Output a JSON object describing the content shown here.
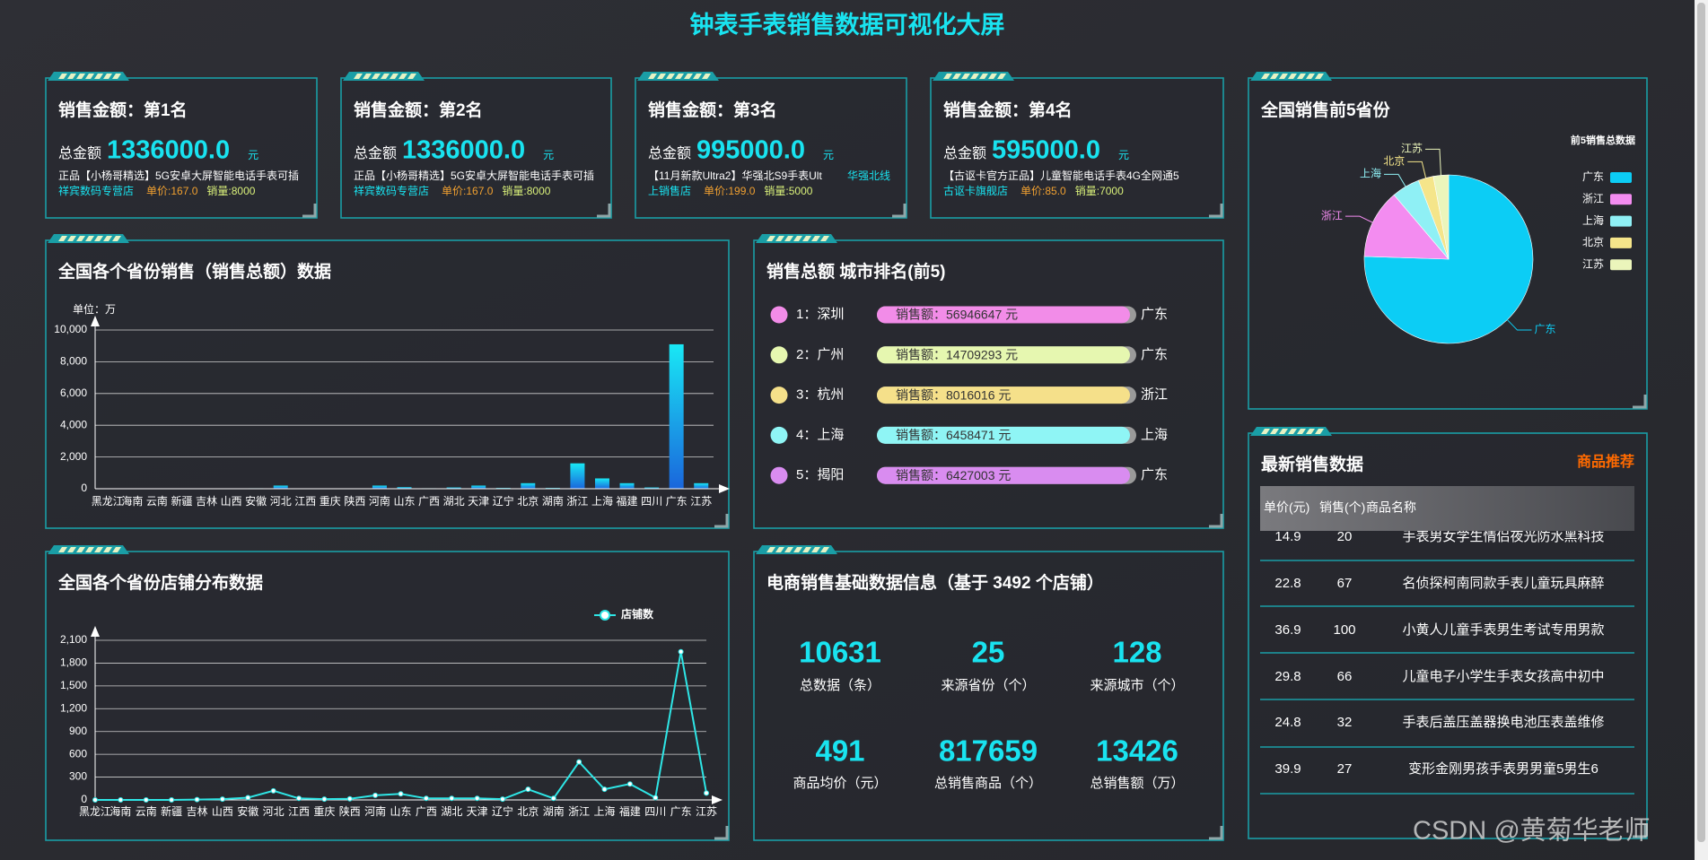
{
  "title": "钟表手表销售数据可视化大屏",
  "cards": [
    {
      "heading": "销售金额：第1名",
      "total_label": "总金额",
      "amount": "1336000.0",
      "unit": "元",
      "product": "正品【小杨哥精选】5G安卓大屏智能电话手表可插",
      "shop": "祥宾数码专营店",
      "price": "单价:167.0",
      "sales": "销量:8000"
    },
    {
      "heading": "销售金额：第2名",
      "total_label": "总金额",
      "amount": "1336000.0",
      "unit": "元",
      "product": "正品【小杨哥精选】5G安卓大屏智能电话手表可插",
      "shop": "祥宾数码专营店",
      "price": "单价:167.0",
      "sales": "销量:8000"
    },
    {
      "heading": "销售金额：第3名",
      "total_label": "总金额",
      "amount": "995000.0",
      "unit": "元",
      "product": "【11月新款Ultra2】华强北S9手表Ult",
      "tag": "华强北线",
      "shop": "上销售店",
      "price": "单价:199.0",
      "sales": "销量:5000"
    },
    {
      "heading": "销售金额：第4名",
      "total_label": "总金额",
      "amount": "595000.0",
      "unit": "元",
      "product": "【古讴卡官方正品】儿童智能电话手表4G全网通5",
      "shop": "古讴卡旗舰店",
      "price": "单价:85.0",
      "sales": "销量:7000"
    }
  ],
  "chart_data": [
    {
      "type": "pie",
      "title": "全国销售前5省份",
      "legend_title": "前5销售总数据",
      "categories": [
        "广东",
        "浙江",
        "上海",
        "北京",
        "江苏"
      ],
      "values": [
        9100,
        1600,
        650,
        350,
        350
      ],
      "colors": [
        "#0ccdf5",
        "#f38cf0",
        "#8ff0f5",
        "#f5e58a",
        "#ebf5bb"
      ]
    },
    {
      "type": "bar",
      "title": "全国各个省份销售（销售总额）数据",
      "y_label": "单位：万",
      "categories": [
        "黑龙江",
        "海南",
        "云南",
        "新疆",
        "吉林",
        "山西",
        "安徽",
        "河北",
        "江西",
        "重庆",
        "陕西",
        "河南",
        "山东",
        "广西",
        "湖北",
        "天津",
        "辽宁",
        "北京",
        "湖南",
        "浙江",
        "上海",
        "福建",
        "四川",
        "广东",
        "江苏"
      ],
      "values": [
        0,
        0,
        0,
        0,
        0,
        0,
        30,
        200,
        20,
        10,
        20,
        200,
        100,
        30,
        80,
        200,
        50,
        350,
        50,
        1600,
        650,
        350,
        80,
        9100,
        350
      ],
      "ylim": [
        0,
        10000
      ],
      "yticks": [
        0,
        {
          "value": 2000,
          "label": "2,000"
        },
        {
          "value": 4000,
          "label": "4,000"
        },
        {
          "value": 6000,
          "label": "6,000"
        },
        {
          "value": 8000,
          "label": "8,000"
        },
        {
          "value": 10000,
          "label": "10,000"
        }
      ],
      "grid": true,
      "color": "#19e8f5"
    },
    {
      "type": "line",
      "title": "全国各个省份店铺分布数据",
      "categories": [
        "黑龙江",
        "海南",
        "云南",
        "新疆",
        "吉林",
        "山西",
        "安徽",
        "河北",
        "江西",
        "重庆",
        "陕西",
        "河南",
        "山东",
        "广西",
        "湖北",
        "天津",
        "辽宁",
        "北京",
        "湖南",
        "浙江",
        "上海",
        "福建",
        "四川",
        "广东",
        "江苏"
      ],
      "series": [
        {
          "name": "店铺数",
          "color": "#2ee6e6",
          "values": [
            0,
            0,
            0,
            0,
            5,
            10,
            30,
            120,
            20,
            10,
            15,
            60,
            80,
            20,
            20,
            20,
            10,
            140,
            20,
            500,
            140,
            210,
            30,
            1950,
            90
          ]
        }
      ],
      "ylim": [
        0,
        2100
      ],
      "yticks": [
        0,
        300,
        600,
        900,
        {
          "value": 1200,
          "label": "1,200"
        },
        {
          "value": 1500,
          "label": "1,500"
        },
        {
          "value": 1800,
          "label": "1,800"
        },
        {
          "value": 2100,
          "label": "2,100"
        }
      ],
      "grid": true
    }
  ],
  "ranking": {
    "title": "销售总额 城市排名(前5)",
    "items": [
      {
        "rank": "1：深圳",
        "sales": "销售额：56946647 元",
        "province": "广东",
        "color": "#f28ce8"
      },
      {
        "rank": "2：广州",
        "sales": "销售额：14709293 元",
        "province": "广东",
        "color": "#e6f7b0"
      },
      {
        "rank": "3：杭州",
        "sales": "销售额：8016016 元",
        "province": "浙江",
        "color": "#f5e08a"
      },
      {
        "rank": "4：上海",
        "sales": "销售额：6458471 元",
        "province": "上海",
        "color": "#8ff5f5"
      },
      {
        "rank": "5：揭阳",
        "sales": "销售额：6427003 元",
        "province": "广东",
        "color": "#d98cf0"
      }
    ]
  },
  "stats": {
    "title": "电商销售基础数据信息（基于 3492 个店铺）",
    "items": [
      {
        "value": "10631",
        "label": "总数据（条）"
      },
      {
        "value": "25",
        "label": "来源省份（个）"
      },
      {
        "value": "128",
        "label": "来源城市（个）"
      },
      {
        "value": "491",
        "label": "商品均价（元）"
      },
      {
        "value": "817659",
        "label": "总销售商品（个）"
      },
      {
        "value": "13426",
        "label": "总销售额（万）"
      }
    ]
  },
  "table": {
    "title": "最新销售数据",
    "link": "商品推荐",
    "header": [
      "单价(元)",
      "销售(个)",
      "商品名称"
    ],
    "rows": [
      [
        "14.9",
        "20",
        "手表男女学生情侣夜光防水黑科技"
      ],
      [
        "22.8",
        "67",
        "名侦探柯南同款手表儿童玩具麻醉"
      ],
      [
        "36.9",
        "100",
        "小黄人儿童手表男生考试专用男款"
      ],
      [
        "29.8",
        "66",
        "儿童电子小学生手表女孩高中初中"
      ],
      [
        "24.8",
        "32",
        "手表后盖压盖器换电池压表盖维修"
      ],
      [
        "39.9",
        "27",
        "变形金刚男孩手表男男童5男生6"
      ]
    ]
  },
  "watermark": "CSDN @黄菊华老师"
}
